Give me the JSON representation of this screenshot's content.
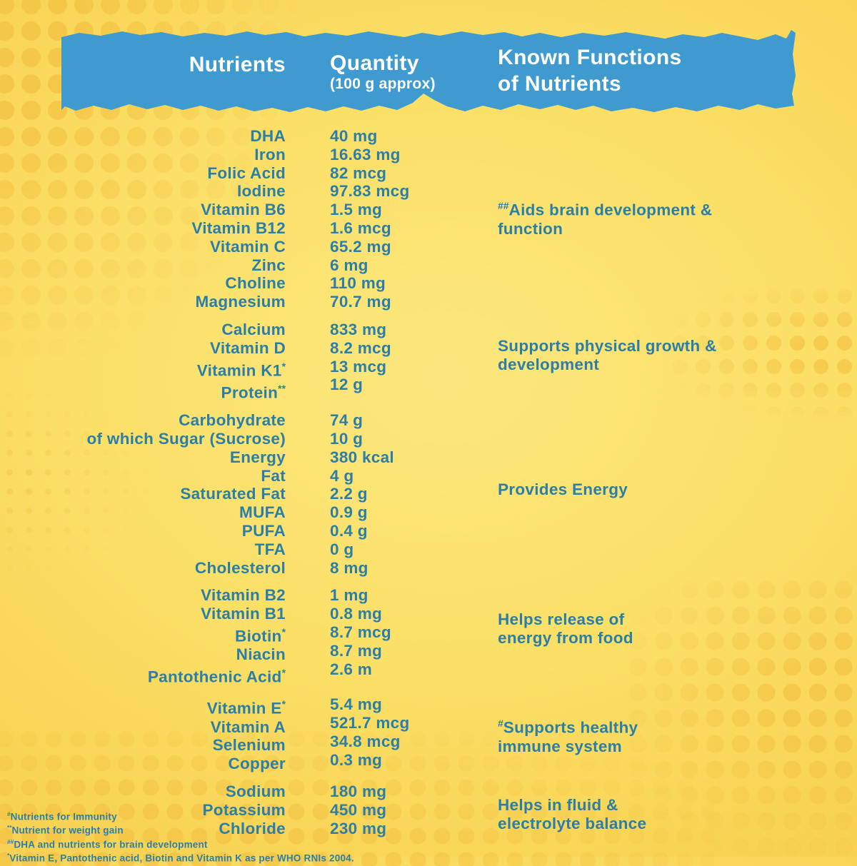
{
  "colors": {
    "banner_blue": "#3F9AD0",
    "text_blue": "#2B7EA6",
    "background_yellow": "#FBDF66",
    "dot_yellow": "#F4C446",
    "header_text": "#FFFFFF"
  },
  "header": {
    "col1": "Nutrients",
    "col2_title": "Quantity",
    "col2_sub": "(100 g approx)",
    "col3": "Known Functions\nof Nutrients"
  },
  "table": {
    "groups": [
      {
        "rows": [
          {
            "name": "DHA",
            "qty": "40 mg"
          },
          {
            "name": "Iron",
            "qty": "16.63 mg"
          },
          {
            "name": "Folic Acid",
            "qty": "82 mcg"
          },
          {
            "name": "Iodine",
            "qty": "97.83 mcg"
          },
          {
            "name": "Vitamin B6",
            "qty": "1.5 mg"
          },
          {
            "name": "Vitamin B12",
            "qty": "1.6 mcg"
          },
          {
            "name": "Vitamin C",
            "qty": "65.2 mg"
          },
          {
            "name": "Zinc",
            "qty": "6 mg"
          },
          {
            "name": "Choline",
            "qty": "110 mg"
          },
          {
            "name": "Magnesium",
            "qty": "70.7 mg"
          }
        ],
        "function": {
          "prefix": "##",
          "text": "Aids brain development &\nfunction"
        }
      },
      {
        "rows": [
          {
            "name": "Calcium",
            "qty": "833 mg"
          },
          {
            "name": "Vitamin D",
            "qty": "8.2 mcg"
          },
          {
            "name": "Vitamin K1",
            "mark": "*",
            "qty": "13 mcg"
          },
          {
            "name": "Protein",
            "mark": "**",
            "qty": "12 g"
          }
        ],
        "function": {
          "prefix": "",
          "text": "Supports physical growth &\ndevelopment"
        }
      },
      {
        "rows": [
          {
            "name": "Carbohydrate",
            "qty": "74 g"
          },
          {
            "name": "of which Sugar (Sucrose)",
            "qty": "10 g"
          },
          {
            "name": "Energy",
            "qty": "380 kcal"
          },
          {
            "name": "Fat",
            "qty": "4 g"
          },
          {
            "name": "Saturated Fat",
            "qty": "2.2 g"
          },
          {
            "name": "MUFA",
            "qty": "0.9 g"
          },
          {
            "name": "PUFA",
            "qty": "0.4 g"
          },
          {
            "name": "TFA",
            "qty": "0 g"
          },
          {
            "name": "Cholesterol",
            "qty": "8 mg"
          }
        ],
        "function": {
          "prefix": "",
          "text": "Provides Energy"
        }
      },
      {
        "rows": [
          {
            "name": "Vitamin B2",
            "qty": "1 mg"
          },
          {
            "name": "Vitamin B1",
            "qty": "0.8 mg"
          },
          {
            "name": "Biotin",
            "mark": "*",
            "qty": "8.7 mcg"
          },
          {
            "name": "Niacin",
            "qty": "8.7 mg"
          },
          {
            "name": "Pantothenic Acid",
            "mark": "*",
            "qty": "2.6 m"
          }
        ],
        "function": {
          "prefix": "",
          "text": "Helps release of\nenergy from food"
        }
      },
      {
        "rows": [
          {
            "name": "Vitamin E",
            "mark": "*",
            "qty": "5.4 mg"
          },
          {
            "name": "Vitamin A",
            "qty": "521.7 mcg"
          },
          {
            "name": "Selenium",
            "qty": "34.8 mcg"
          },
          {
            "name": "Copper",
            "qty": "0.3 mg"
          }
        ],
        "function": {
          "prefix": "#",
          "text": "Supports healthy\nimmune system"
        }
      },
      {
        "rows": [
          {
            "name": "Sodium",
            "qty": "180 mg"
          },
          {
            "name": "Potassium",
            "qty": "450 mg"
          },
          {
            "name": "Chloride",
            "qty": "230 mg"
          }
        ],
        "function": {
          "prefix": "",
          "text": "Helps in fluid &\nelectrolyte balance"
        }
      }
    ]
  },
  "footnotes": [
    {
      "mark": "#",
      "text": "Nutrients for Immunity"
    },
    {
      "mark": "**",
      "text": "Nutrient for weight gain"
    },
    {
      "mark": "##",
      "text": "DHA and nutrients for brain development"
    },
    {
      "mark": "*",
      "text": "Vitamin E, Pantothenic acid, Biotin and Vitamin K as per WHO RNIs 2004."
    }
  ]
}
